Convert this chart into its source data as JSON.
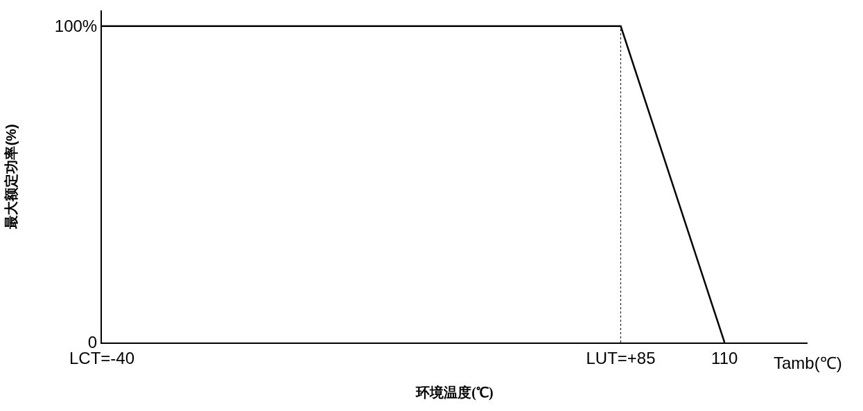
{
  "chart_data": {
    "type": "line",
    "xlabel": "环境温度(℃)",
    "ylabel": "最大额定功率(%)",
    "x": [
      -40,
      85,
      110
    ],
    "values": [
      100,
      100,
      0
    ],
    "color": "#000000",
    "line_style": "solid",
    "marker": "none",
    "xlim": [
      -40,
      130
    ],
    "xticks": [
      {
        "value": -40,
        "label": "LCT=-40"
      },
      {
        "value": 85,
        "label": "LUT=+85"
      },
      110
    ],
    "ylim": [
      0,
      105
    ],
    "yticks": [
      0,
      {
        "value": 100,
        "label": "100%"
      }
    ],
    "ref_lines": [
      {
        "axis": "x",
        "value": 85,
        "line_style": "dotted",
        "color": "#000000"
      }
    ],
    "annotations": [
      "Tamb(℃)"
    ]
  }
}
